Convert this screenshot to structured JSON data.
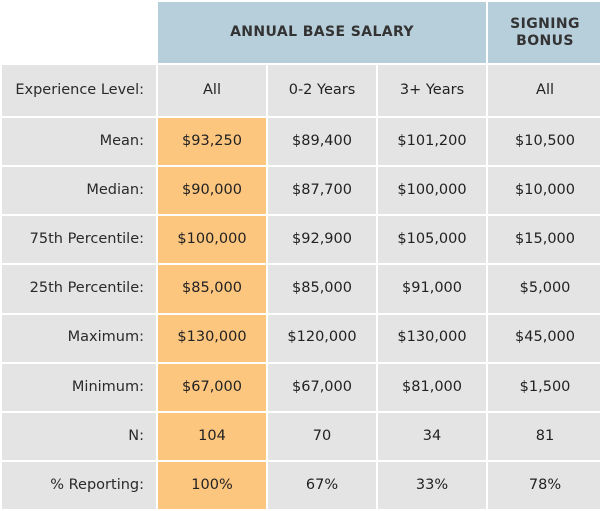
{
  "header": {
    "annual_base_salary": "ANNUAL BASE SALARY",
    "signing_bonus": "SIGNING BONUS"
  },
  "subheader": {
    "row_label": "Experience Level:",
    "columns": [
      "All",
      "0-2 Years",
      "3+ Years",
      "All"
    ]
  },
  "rows": [
    {
      "label": "Mean:",
      "values": [
        "$93,250",
        "$89,400",
        "$101,200",
        "$10,500"
      ]
    },
    {
      "label": "Median:",
      "values": [
        "$90,000",
        "$87,700",
        "$100,000",
        "$10,000"
      ]
    },
    {
      "label": "75th Percentile:",
      "values": [
        "$100,000",
        "$92,900",
        "$105,000",
        "$15,000"
      ]
    },
    {
      "label": "25th Percentile:",
      "values": [
        "$85,000",
        "$85,000",
        "$91,000",
        "$5,000"
      ]
    },
    {
      "label": "Maximum:",
      "values": [
        "$130,000",
        "$120,000",
        "$130,000",
        "$45,000"
      ]
    },
    {
      "label": "Minimum:",
      "values": [
        "$67,000",
        "$67,000",
        "$81,000",
        "$1,500"
      ]
    },
    {
      "label": "N:",
      "values": [
        "104",
        "70",
        "34",
        "81"
      ]
    },
    {
      "label": "% Reporting:",
      "values": [
        "100%",
        "67%",
        "33%",
        "78%"
      ]
    }
  ],
  "colors": {
    "header_blue": "#b7cedb",
    "cell_gray": "#e4e4e4",
    "highlight_orange": "#fcc67f"
  }
}
